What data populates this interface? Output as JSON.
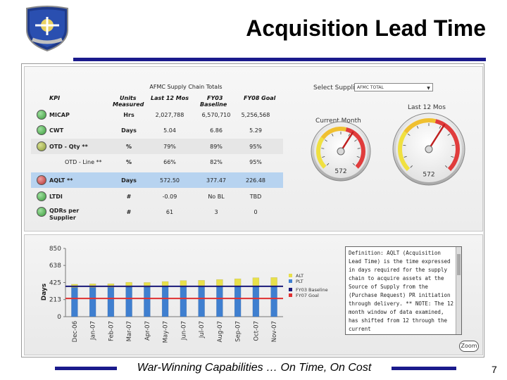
{
  "slide": {
    "title": "Acquisition Lead Time",
    "footer_tagline": "War-Winning Capabilities … On Time, On Cost",
    "page_number": "7",
    "accent_color": "#1a1a8c"
  },
  "scorecard": {
    "title": "AFMC Supply Chain Totals",
    "headers": {
      "kpi": "KPI",
      "units_line1": "Units",
      "units_line2": "Measured",
      "last12": "Last 12 Mos",
      "fy03_line1": "FY03",
      "fy03_line2": "Baseline",
      "fy08": "FY08 Goal"
    },
    "rows": [
      {
        "kpi": "MICAP",
        "units": "Hrs",
        "last12": "2,027,788",
        "fy03": "6,570,710",
        "fy08": "5,256,568",
        "status": "green",
        "status_color": "#3a9a3a"
      },
      {
        "kpi": "CWT",
        "units": "Days",
        "last12": "5.04",
        "fy03": "6.86",
        "fy08": "5.29",
        "status": "green",
        "status_color": "#3a9a3a"
      },
      {
        "kpi": "OTD - Qty **",
        "units": "%",
        "last12": "79%",
        "fy03": "89%",
        "fy08": "95%",
        "status": "yellow-green",
        "status_color": "#8a9a3a"
      },
      {
        "kpi": "OTD - Line **",
        "units": "%",
        "last12": "66%",
        "fy03": "82%",
        "fy08": "95%",
        "status": "none",
        "status_color": ""
      },
      {
        "kpi": "AQLT **",
        "units": "Days",
        "last12": "572.50",
        "fy03": "377.47",
        "fy08": "226.48",
        "status": "red",
        "status_color": "#b03030"
      },
      {
        "kpi": "LTDI",
        "units": "#",
        "last12": "-0.09",
        "fy03": "No BL",
        "fy08": "TBD",
        "status": "green",
        "status_color": "#3a9a3a"
      },
      {
        "kpi": "QDRs per",
        "kpi_line2": "Supplier",
        "units": "#",
        "last12": "61",
        "fy03": "3",
        "fy08": "0",
        "status": "green",
        "status_color": "#3a9a3a"
      }
    ]
  },
  "controls": {
    "select_supplier_label": "Select Supplier",
    "select_supplier_value": "AFMC TOTAL",
    "current_month_label": "Current Month",
    "last12_label": "Last 12 Mos",
    "zoom_label": "Zoom"
  },
  "gauges": [
    {
      "id": "current-month",
      "value": 572,
      "value_text": "572"
    },
    {
      "id": "last-12-mos",
      "value": 572,
      "value_text": "572"
    }
  ],
  "definition": "Definition: AQLT (Acquisition Lead Time) is the time expressed in days required for the supply chain to acquire assets at the Source of Supply from the (Purchase Request) PR initiation through delivery. ** NOTE: The 12 month window of data examined, has shifted from 12 through the current",
  "chart_data": {
    "type": "bar",
    "title": "",
    "xlabel": "",
    "ylabel": "Days",
    "ylim": [
      0,
      850
    ],
    "yticks": [
      0,
      213,
      425,
      638,
      850
    ],
    "categories": [
      "Dec-06",
      "Jan-07",
      "Feb-07",
      "Mar-07",
      "Apr-07",
      "May-07",
      "Jun-07",
      "Jul-07",
      "Aug-07",
      "Sep-07",
      "Oct-07",
      "Nov-07"
    ],
    "stacked": true,
    "series": [
      {
        "name": "PLT",
        "color": "#3f7fd0",
        "values": [
          364,
          365,
          366,
          368,
          368,
          372,
          374,
          375,
          377,
          378,
          379,
          380
        ]
      },
      {
        "name": "ALT",
        "color": "#e8e04a",
        "values": [
          40,
          44,
          44,
          60,
          58,
          66,
          76,
          78,
          86,
          94,
          106,
          108
        ]
      }
    ],
    "reference_lines": [
      {
        "name": "FY03 Baseline",
        "color": "#1a1a7a",
        "value": 377.47
      },
      {
        "name": "FY07 Goal",
        "color": "#e03030",
        "value": 226.48
      }
    ],
    "legend_position": "right"
  }
}
